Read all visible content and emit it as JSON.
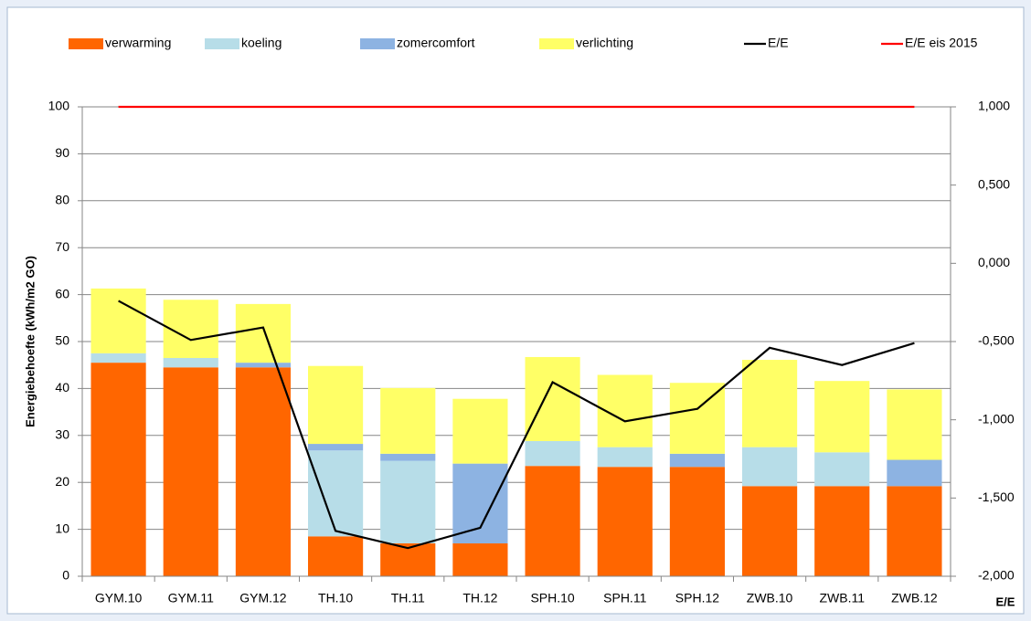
{
  "chart_data": {
    "type": "bar-line",
    "categories": [
      "GYM.10",
      "GYM.11",
      "GYM.12",
      "TH.10",
      "TH.11",
      "TH.12",
      "SPH.10",
      "SPH.11",
      "SPH.12",
      "ZWB.10",
      "ZWB.11",
      "ZWB.12"
    ],
    "series": [
      {
        "name": "verwarming",
        "color": "#ff6600",
        "type": "bar",
        "values": [
          45.5,
          44.5,
          44.5,
          8.5,
          7,
          7,
          23.5,
          23.3,
          23.3,
          19.2,
          19.2,
          19.2
        ]
      },
      {
        "name": "koeling",
        "color": "#b7dde8",
        "type": "bar",
        "values": [
          2,
          2,
          0,
          18.3,
          17.6,
          0,
          5.3,
          4.2,
          0,
          8.3,
          7.2,
          0
        ]
      },
      {
        "name": "zomercomfort",
        "color": "#8db3e2",
        "type": "bar",
        "values": [
          0,
          0,
          1,
          1.4,
          1.5,
          17,
          0,
          0,
          2.8,
          0,
          0,
          5.6
        ]
      },
      {
        "name": "verlichting",
        "color": "#ffff66",
        "type": "bar",
        "values": [
          13.8,
          12.4,
          12.5,
          16.6,
          14,
          13.8,
          17.9,
          15.4,
          15.1,
          18.6,
          15.2,
          15
        ]
      },
      {
        "name": "E/E",
        "color": "#000000",
        "type": "line",
        "axis": "y2",
        "values": [
          -0.24,
          -0.49,
          -0.41,
          -1.71,
          -1.82,
          -1.69,
          -0.76,
          -1.01,
          -0.93,
          -0.54,
          -0.65,
          -0.51
        ]
      },
      {
        "name": "E/E eis 2015",
        "color": "#ff0000",
        "type": "line",
        "axis": "y2",
        "values": [
          1,
          1,
          1,
          1,
          1,
          1,
          1,
          1,
          1,
          1,
          1,
          1
        ]
      }
    ],
    "y_label": "Energiebehoefte (kWh/m2 GO)",
    "y2_label": "E/E",
    "ylim": [
      0,
      100
    ],
    "yticks": [
      0,
      10,
      20,
      30,
      40,
      50,
      60,
      70,
      80,
      90,
      100
    ],
    "y2lim": [
      -2,
      1
    ],
    "y2ticks": [
      {
        "value": -2,
        "label": "-2,000"
      },
      {
        "value": -1.5,
        "label": "-1,500"
      },
      {
        "value": -1,
        "label": "-1,000"
      },
      {
        "value": -0.5,
        "label": "-0,500"
      },
      {
        "value": 0,
        "label": "0,000"
      },
      {
        "value": 0.5,
        "label": "0,500"
      },
      {
        "value": 1,
        "label": "1,000"
      }
    ],
    "grid": true,
    "legend": "top"
  }
}
